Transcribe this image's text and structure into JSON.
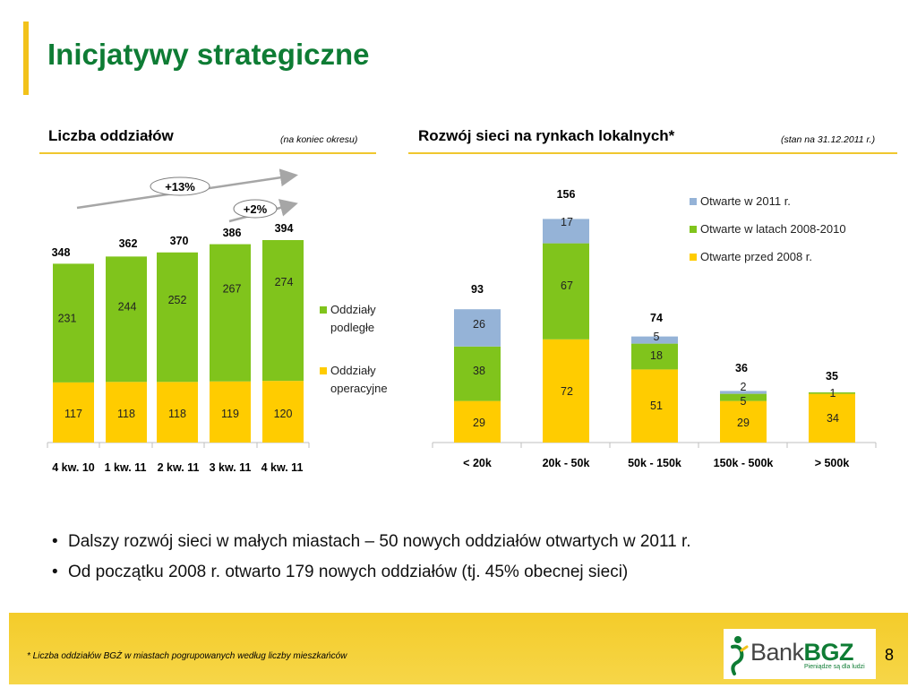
{
  "title": "Inicjatywy strategiczne",
  "left_section": {
    "title": "Liczba oddziałów",
    "note": "(na koniec okresu)"
  },
  "right_section": {
    "title": "Rozwój sieci na rynkach lokalnych*",
    "note": "(stan na 31.12.2011 r.)"
  },
  "bullets": [
    "Dalszy rozwój sieci w małych miastach – 50 nowych oddziałów otwartych w 2011 r.",
    "Od początku 2008 r. otwarto 179 nowych oddziałów (tj. 45% obecnej sieci)"
  ],
  "footnote": "*  Liczba oddziałów BGŻ w miastach pogrupowanych według liczby mieszkańców",
  "page_number": "8",
  "logo": {
    "text": "Bank",
    "text_bold": "BGZ",
    "slogan": "Pieniądze są dla ludzi"
  },
  "colors": {
    "green": "#80c41c",
    "yellow": "#ffcc00",
    "blue": "#95b3d7",
    "title_green": "#0e7c34",
    "accent": "#f2c21a"
  },
  "chart_data": [
    {
      "type": "bar",
      "stacked": true,
      "categories": [
        "4 kw. 10",
        "1 kw. 11",
        "2 kw. 11",
        "3 kw. 11",
        "4 kw. 11"
      ],
      "series": [
        {
          "name": "Oddziały operacyjne",
          "values": [
            117,
            118,
            118,
            119,
            120
          ]
        },
        {
          "name": "Oddziały podległe",
          "values": [
            231,
            244,
            252,
            267,
            274
          ]
        }
      ],
      "totals": [
        348,
        362,
        370,
        386,
        394
      ],
      "annotations": [
        {
          "label": "+13%",
          "from": "4 kw. 10",
          "to": "4 kw. 11"
        },
        {
          "label": "+2%",
          "from": "3 kw. 11",
          "to": "4 kw. 11"
        }
      ],
      "legend_position": "right"
    },
    {
      "type": "bar",
      "stacked": true,
      "categories": [
        "< 20k",
        "20k - 50k",
        "50k - 150k",
        "150k - 500k",
        "> 500k"
      ],
      "series": [
        {
          "name": "Otwarte przed 2008 r.",
          "values": [
            29,
            72,
            51,
            29,
            34
          ]
        },
        {
          "name": "Otwarte w latach 2008-2010",
          "values": [
            38,
            67,
            18,
            5,
            1
          ]
        },
        {
          "name": "Otwarte w 2011 r.",
          "values": [
            26,
            17,
            5,
            2,
            0
          ]
        }
      ],
      "totals": [
        93,
        156,
        74,
        36,
        35
      ],
      "legend_position": "top-right"
    }
  ]
}
